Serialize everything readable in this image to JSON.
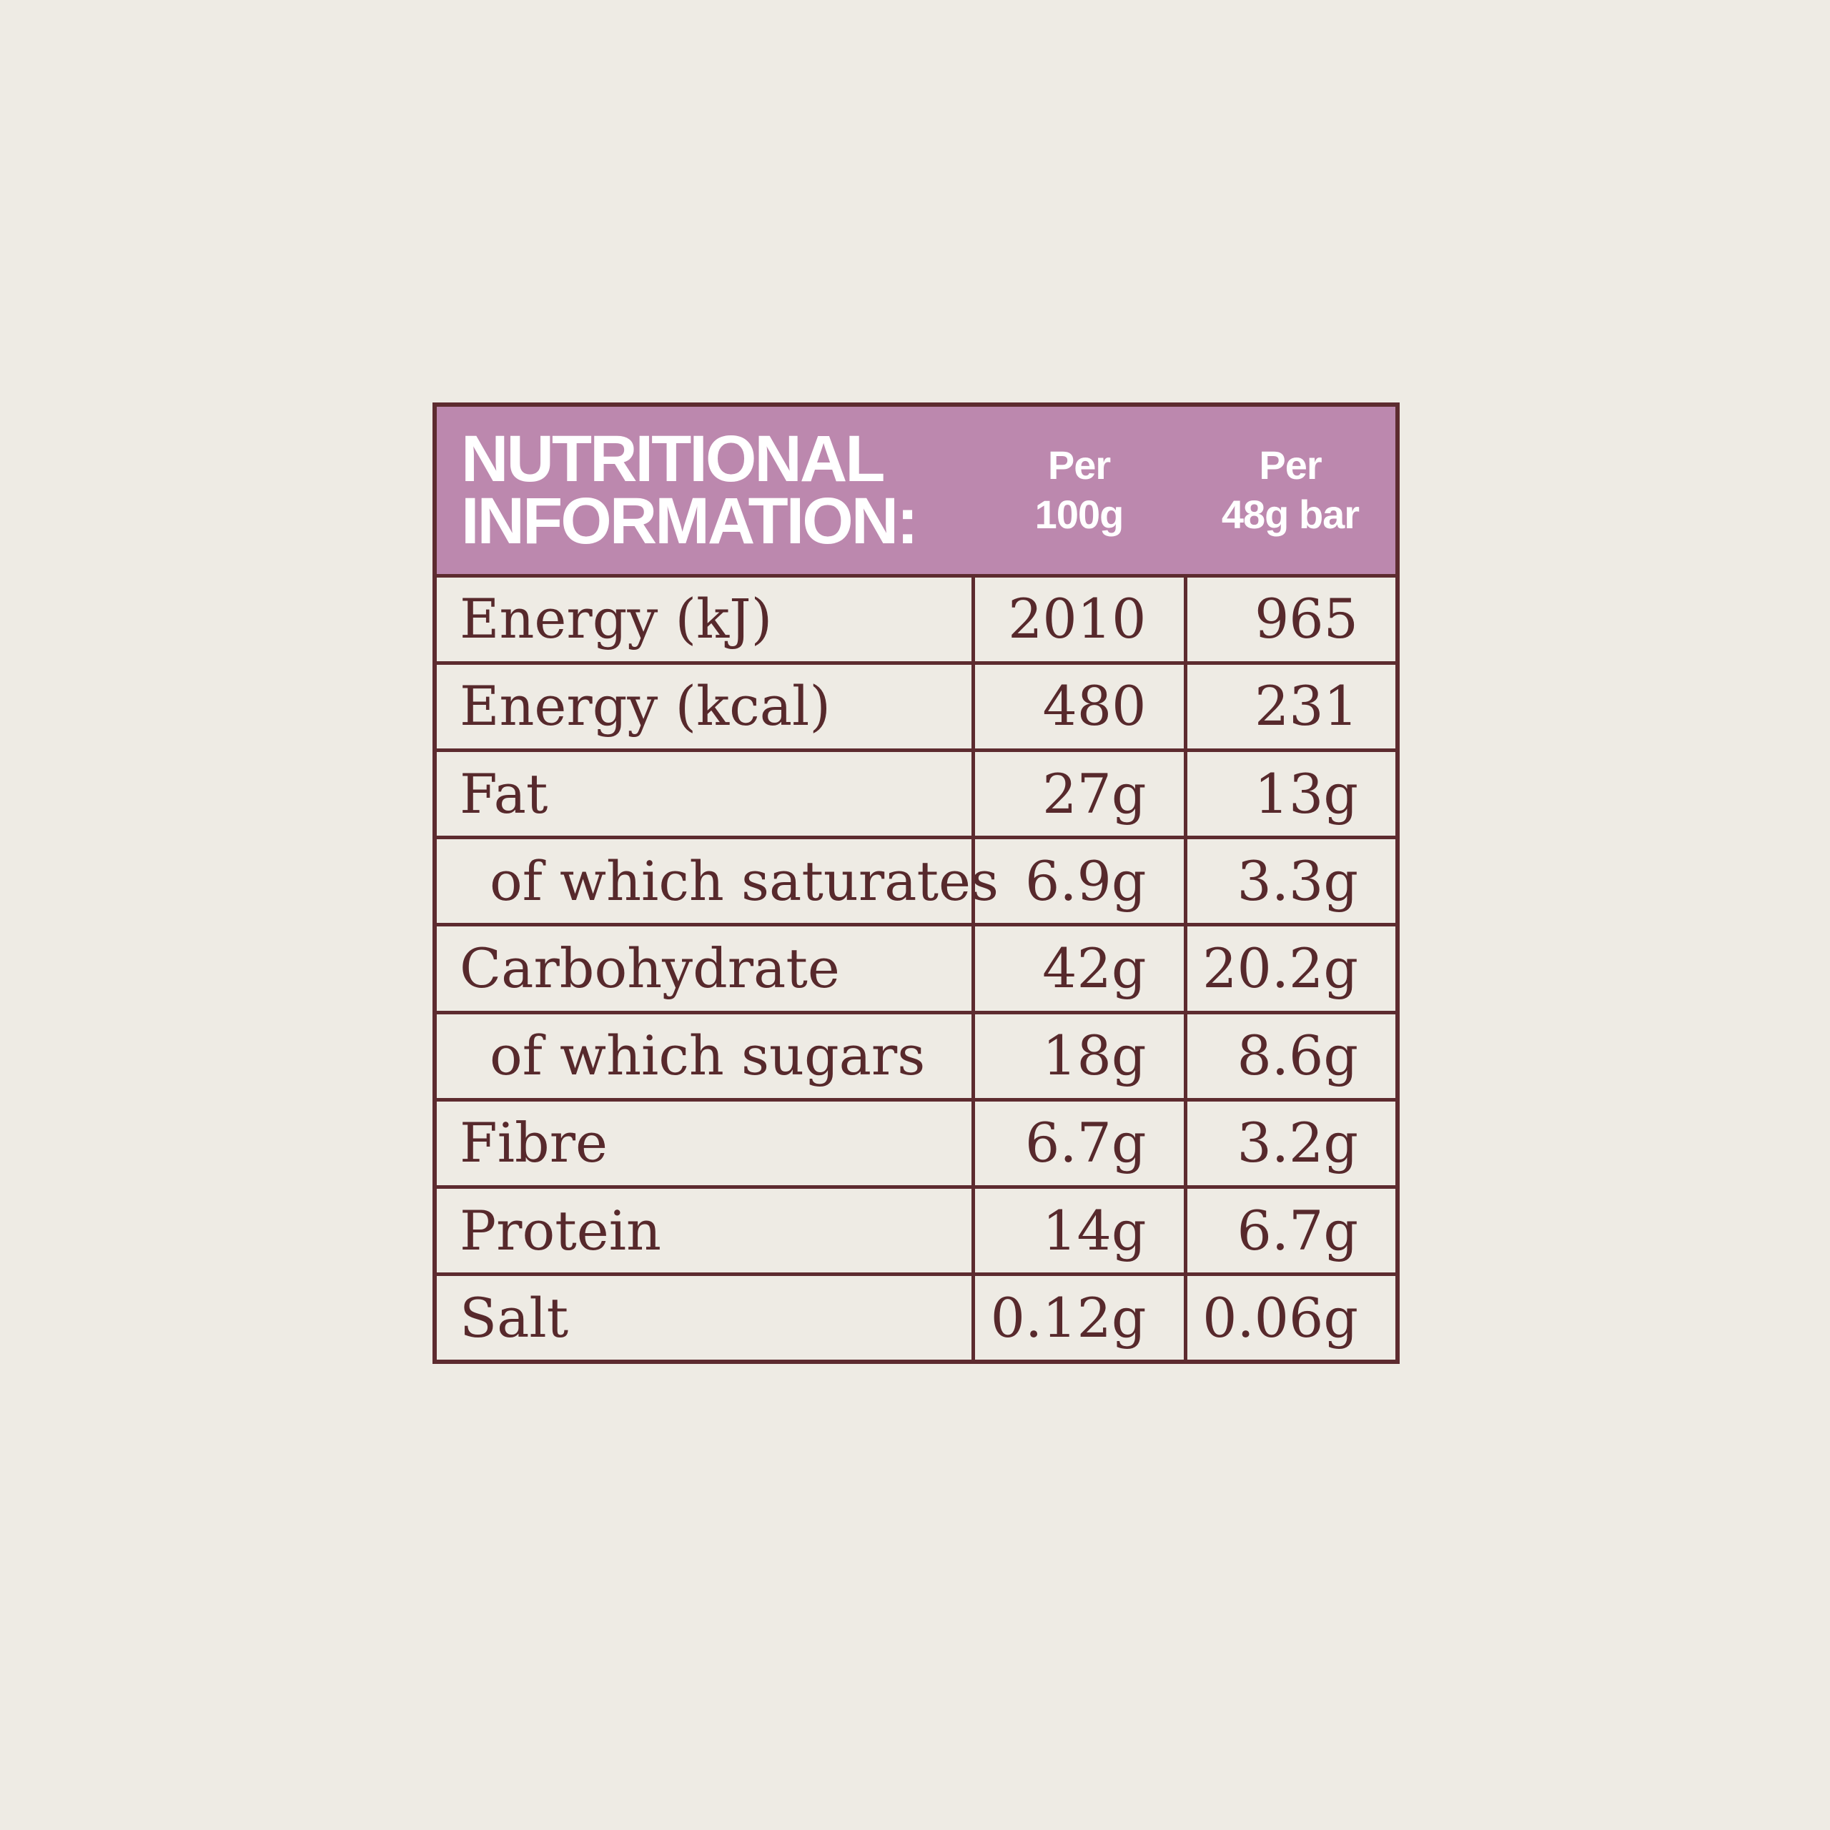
{
  "colors": {
    "page_bg": "#eeebe4",
    "header_bg": "#bc88ae",
    "border": "#5d2b2f",
    "text": "#57292c",
    "header_text": "#ffffff"
  },
  "header": {
    "title_line1": "NUTRITIONAL",
    "title_line2": "INFORMATION:",
    "col1": {
      "line1": "Per",
      "line2": "100g"
    },
    "col2": {
      "line1": "Per",
      "line2": "48g bar"
    }
  },
  "rows": [
    {
      "label": "Energy (kJ)",
      "per100": "2010",
      "per48": "965",
      "indent": false
    },
    {
      "label": "Energy (kcal)",
      "per100": "480",
      "per48": "231",
      "indent": false
    },
    {
      "label": "Fat",
      "per100": "27g",
      "per48": "13g",
      "indent": false
    },
    {
      "label": "of which saturates",
      "per100": "6.9g",
      "per48": "3.3g",
      "indent": true
    },
    {
      "label": "Carbohydrate",
      "per100": "42g",
      "per48": "20.2g",
      "indent": false
    },
    {
      "label": "of which sugars",
      "per100": "18g",
      "per48": "8.6g",
      "indent": true
    },
    {
      "label": "Fibre",
      "per100": "6.7g",
      "per48": "3.2g",
      "indent": false
    },
    {
      "label": "Protein",
      "per100": "14g",
      "per48": "6.7g",
      "indent": false
    },
    {
      "label": "Salt",
      "per100": "0.12g",
      "per48": "0.06g",
      "indent": false
    }
  ]
}
